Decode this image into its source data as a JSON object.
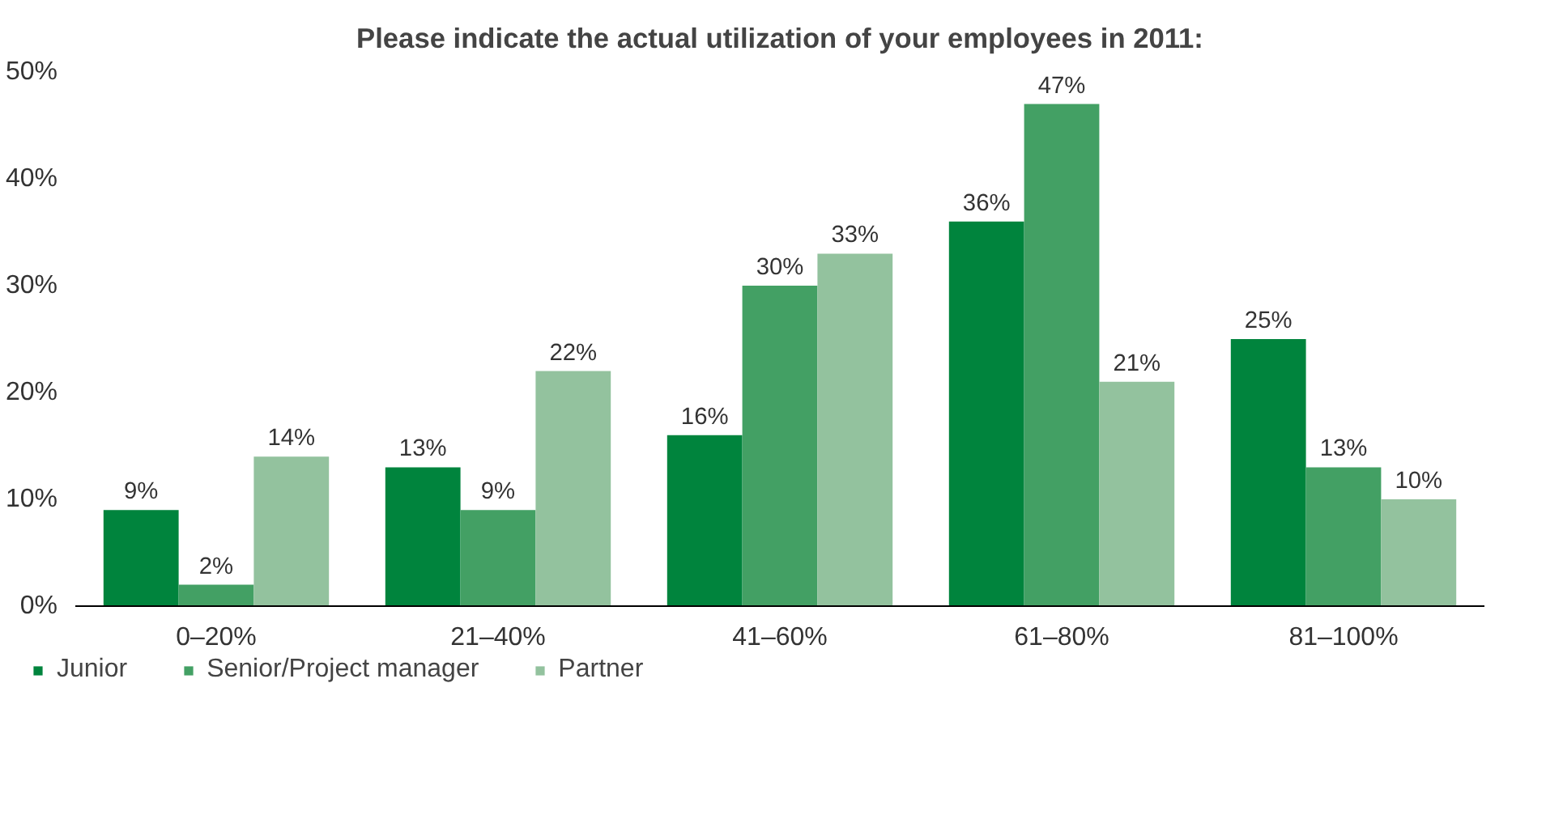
{
  "chart_data": {
    "type": "bar",
    "title": "Please indicate the actual utilization of your employees in 2011:",
    "categories": [
      "0–20%",
      "21–40%",
      "41–60%",
      "61–80%",
      "81–100%"
    ],
    "series": [
      {
        "name": "Junior",
        "color": "#00843d",
        "values": [
          9,
          13,
          16,
          36,
          25
        ],
        "value_labels": [
          "9%",
          "13%",
          "16%",
          "36%",
          "25%"
        ]
      },
      {
        "name": "Senior/Project manager",
        "color": "#43a064",
        "values": [
          2,
          9,
          30,
          47,
          13
        ],
        "value_labels": [
          "2%",
          "9%",
          "30%",
          "47%",
          "13%"
        ]
      },
      {
        "name": "Partner",
        "color": "#93c29e",
        "values": [
          14,
          22,
          33,
          21,
          10
        ],
        "value_labels": [
          "14%",
          "22%",
          "33%",
          "21%",
          "10%"
        ]
      }
    ],
    "ylim": [
      0,
      50
    ],
    "yticks": [
      {
        "value": 0,
        "label": "0%"
      },
      {
        "value": 10,
        "label": "10%"
      },
      {
        "value": 20,
        "label": "20%"
      },
      {
        "value": 30,
        "label": "30%"
      },
      {
        "value": 40,
        "label": "40%"
      },
      {
        "value": 50,
        "label": "50%"
      }
    ],
    "grid": false,
    "legend": "bottom left"
  }
}
